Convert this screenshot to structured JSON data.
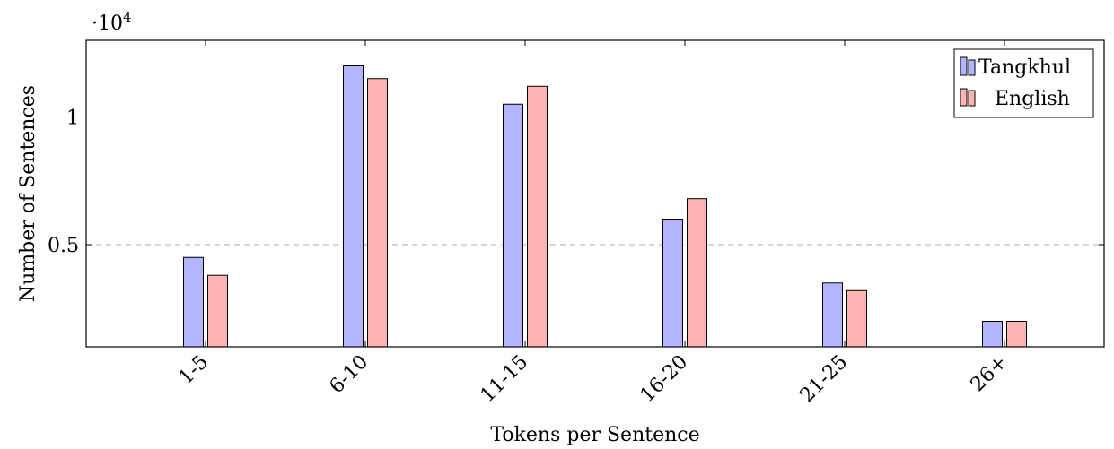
{
  "chart_data": {
    "type": "bar",
    "title": "",
    "xlabel": "Tokens per Sentence",
    "ylabel": "Number of Sentences",
    "y_scale_label": "·10",
    "y_scale_exponent": "4",
    "categories": [
      "1-5",
      "6-10",
      "11-15",
      "16-20",
      "21-25",
      "26+"
    ],
    "series": [
      {
        "name": "Tangkhul",
        "color": "#b3b3ff",
        "values": [
          4500,
          12000,
          10500,
          6000,
          3500,
          2000
        ]
      },
      {
        "name": "English",
        "color": "#ffb3b3",
        "values": [
          3800,
          11500,
          11200,
          6800,
          3200,
          2000
        ]
      }
    ],
    "ylim": [
      1000,
      13000
    ],
    "yticks": [
      5000,
      10000
    ],
    "ytick_labels": [
      "0.5",
      "1"
    ],
    "grid": "y-dashed",
    "legend_position": "top-right"
  }
}
